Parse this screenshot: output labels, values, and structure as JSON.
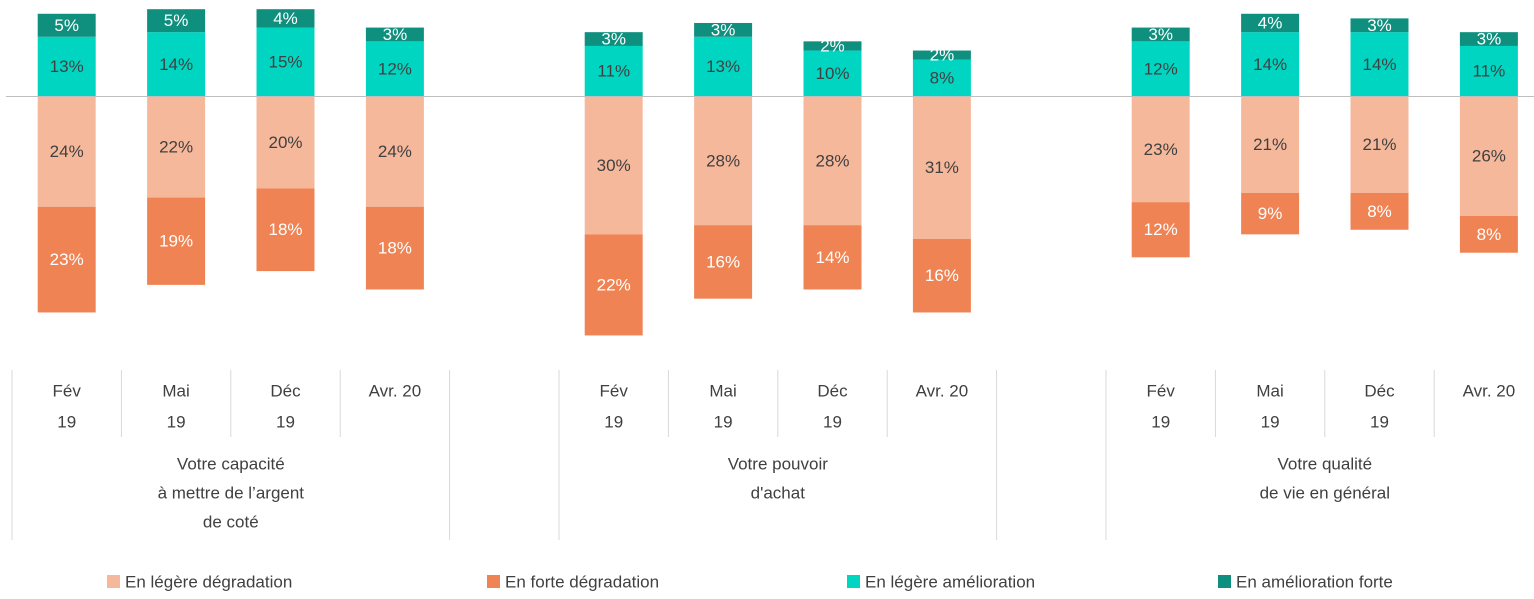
{
  "chart_data": {
    "type": "diverging_bar",
    "categories": [
      [
        "Fév",
        "19"
      ],
      [
        "Mai",
        "19"
      ],
      [
        "Déc",
        "19"
      ],
      [
        "Avr. 20"
      ],
      null,
      [
        "Fév",
        "19"
      ],
      [
        "Mai",
        "19"
      ],
      [
        "Déc",
        "19"
      ],
      [
        "Avr. 20"
      ],
      null,
      [
        "Fév",
        "19"
      ],
      [
        "Mai",
        "19"
      ],
      [
        "Déc",
        "19"
      ],
      [
        "Avr. 20"
      ]
    ],
    "group_labels": [
      [
        "Votre capacité",
        "à mettre de l’argent",
        "de coté"
      ],
      [
        "Votre pouvoir",
        "d'achat"
      ],
      [
        "Votre qualité",
        "de vie en général"
      ]
    ],
    "ylim": [
      -58,
      21
    ],
    "series": [
      {
        "name": "En légère dégradation",
        "color": "#f6b89b",
        "label_color": "#404040",
        "values": [
          -24,
          -22,
          -20,
          -24,
          null,
          -30,
          -28,
          -28,
          -31,
          null,
          -23,
          -21,
          -21,
          -26
        ],
        "value_labels": [
          "24%",
          "22%",
          "20%",
          "24%",
          null,
          "30%",
          "28%",
          "28%",
          "31%",
          null,
          "23%",
          "21%",
          "21%",
          "26%"
        ]
      },
      {
        "name": "En forte dégradation",
        "color": "#f08353",
        "label_color": "#ffffff",
        "values": [
          -23,
          -19,
          -18,
          -18,
          null,
          -22,
          -16,
          -14,
          -16,
          null,
          -12,
          -9,
          -8,
          -8
        ],
        "value_labels": [
          "23%",
          "19%",
          "18%",
          "18%",
          null,
          "22%",
          "16%",
          "14%",
          "16%",
          null,
          "12%",
          "9%",
          "8%",
          "8%"
        ]
      },
      {
        "name": "En légère amélioration",
        "color": "#00d5c1",
        "label_color": "#404040",
        "values": [
          13,
          14,
          15,
          12,
          null,
          11,
          13,
          10,
          8,
          null,
          12,
          14,
          14,
          11
        ],
        "value_labels": [
          "13%",
          "14%",
          "15%",
          "12%",
          null,
          "11%",
          "13%",
          "10%",
          "8%",
          null,
          "12%",
          "14%",
          "14%",
          "11%"
        ]
      },
      {
        "name": "En amélioration forte",
        "color": "#0f8f7e",
        "label_color": "#ffffff",
        "values": [
          5,
          5,
          4,
          3,
          null,
          3,
          3,
          2,
          2,
          null,
          3,
          4,
          3,
          3
        ],
        "value_labels": [
          "5%",
          "5%",
          "4%",
          "3%",
          null,
          "3%",
          "3%",
          "2%",
          "2%",
          null,
          "3%",
          "4%",
          "3%",
          "3%"
        ]
      }
    ]
  }
}
